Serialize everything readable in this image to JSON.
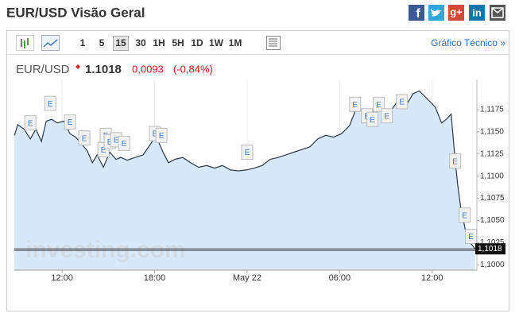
{
  "header": {
    "title": "EUR/USD Visão Geral",
    "share_labels": {
      "facebook": "f",
      "google": "g+",
      "linkedin": "in"
    }
  },
  "toolbar": {
    "buttons": [
      "1",
      "5",
      "15",
      "30",
      "1H",
      "5H",
      "1D",
      "1W",
      "1M"
    ],
    "selected": "15",
    "link": "Gráfico Técnico »"
  },
  "quote": {
    "symbol": "EUR/USD",
    "price": "1.1018",
    "change": "0,0093",
    "change_percent": "(-0,84%)"
  },
  "chart_data": {
    "type": "area",
    "color": "#2b3a48",
    "fill": "#d7e8fb",
    "grid": true,
    "watermark": "investing.com",
    "x": [
      8.91,
      9.12,
      9.53,
      9.94,
      10.3,
      10.66,
      10.97,
      11.33,
      11.69,
      12.1,
      12.51,
      12.88,
      13.24,
      13.65,
      13.96,
      14.27,
      14.68,
      15.09,
      15.5,
      15.81,
      16.22,
      16.74,
      17.25,
      17.77,
      18.08,
      18.54,
      18.9,
      19.31,
      19.83,
      20.34,
      20.86,
      21.37,
      21.89,
      22.4,
      22.92,
      23.43,
      23.95,
      24.46,
      24.98,
      25.49,
      26.01,
      26.52,
      27.04,
      27.55,
      28.07,
      28.58,
      29.1,
      29.61,
      30.13,
      30.64,
      31.16,
      31.67,
      32.19,
      32.7,
      33.22,
      33.73,
      34.25,
      34.76,
      35.17,
      35.69,
      36.2,
      36.61,
      36.92,
      37.23,
      37.44,
      37.64,
      37.85,
      38.16,
      38.47,
      38.78
    ],
    "values": [
      1.1146,
      1.1158,
      1.1153,
      1.1142,
      1.1153,
      1.1139,
      1.1162,
      1.1164,
      1.116,
      1.1162,
      1.1148,
      1.1144,
      1.1137,
      1.1128,
      1.1115,
      1.1124,
      1.111,
      1.1127,
      1.1119,
      1.1121,
      1.1118,
      1.1121,
      1.1124,
      1.1137,
      1.1146,
      1.1127,
      1.1115,
      1.1119,
      1.1121,
      1.1115,
      1.111,
      1.1112,
      1.1109,
      1.1112,
      1.1107,
      1.1106,
      1.1107,
      1.1109,
      1.1112,
      1.1119,
      1.1121,
      1.1124,
      1.1127,
      1.113,
      1.1133,
      1.1142,
      1.1146,
      1.1144,
      1.1148,
      1.1157,
      1.118,
      1.1169,
      1.1173,
      1.1178,
      1.1171,
      1.1184,
      1.1178,
      1.1193,
      1.1196,
      1.1187,
      1.1178,
      1.116,
      1.1164,
      1.117,
      1.1128,
      1.1092,
      1.1065,
      1.1039,
      1.1025,
      1.1018
    ],
    "xlim": [
      8.9,
      38.9
    ],
    "ylim": [
      1.0994,
      1.1209
    ],
    "xticks": [
      {
        "value": 12,
        "label": "12:00"
      },
      {
        "value": 18,
        "label": "18:00"
      },
      {
        "value": 24,
        "label": "May 22"
      },
      {
        "value": 30,
        "label": "06:00"
      },
      {
        "value": 36,
        "label": "12:00"
      }
    ],
    "yticks": [
      {
        "value": 1.1,
        "label": "1,1000"
      },
      {
        "value": 1.1025,
        "label": "1,1025"
      },
      {
        "value": 1.105,
        "label": "1,1050"
      },
      {
        "value": 1.1075,
        "label": "1,1075"
      },
      {
        "value": 1.11,
        "label": "1,1100"
      },
      {
        "value": 1.1125,
        "label": "1,1125"
      },
      {
        "value": 1.115,
        "label": "1,1150"
      },
      {
        "value": 1.1175,
        "label": "1,1175"
      }
    ],
    "last_price": {
      "value": 1.1018,
      "label": "1,1018"
    },
    "events": [
      {
        "label": "E",
        "x": 9.94,
        "y": 1.116
      },
      {
        "label": "E",
        "x": 11.23,
        "y": 1.1182
      },
      {
        "label": "E",
        "x": 12.51,
        "y": 1.1161
      },
      {
        "label": "E",
        "x": 13.44,
        "y": 1.1143
      },
      {
        "label": "E",
        "x": 14.68,
        "y": 1.113
      },
      {
        "label": "E",
        "x": 14.83,
        "y": 1.1146
      },
      {
        "label": "E",
        "x": 15.09,
        "y": 1.1139
      },
      {
        "label": "E",
        "x": 15.5,
        "y": 1.1141
      },
      {
        "label": "E",
        "x": 16.02,
        "y": 1.1137
      },
      {
        "label": "E",
        "x": 18.02,
        "y": 1.1148
      },
      {
        "label": "E",
        "x": 18.44,
        "y": 1.1146
      },
      {
        "label": "E",
        "x": 24.0,
        "y": 1.1127
      },
      {
        "label": "E",
        "x": 31.0,
        "y": 1.1181
      },
      {
        "label": "E",
        "x": 31.77,
        "y": 1.1168
      },
      {
        "label": "E",
        "x": 32.13,
        "y": 1.1164
      },
      {
        "label": "E",
        "x": 32.54,
        "y": 1.1181
      },
      {
        "label": "E",
        "x": 33.06,
        "y": 1.1168
      },
      {
        "label": "E",
        "x": 34.04,
        "y": 1.1184
      },
      {
        "label": "E",
        "x": 37.49,
        "y": 1.1117
      },
      {
        "label": "E",
        "x": 38.11,
        "y": 1.1056
      },
      {
        "label": "E",
        "x": 38.52,
        "y": 1.1032
      }
    ]
  }
}
